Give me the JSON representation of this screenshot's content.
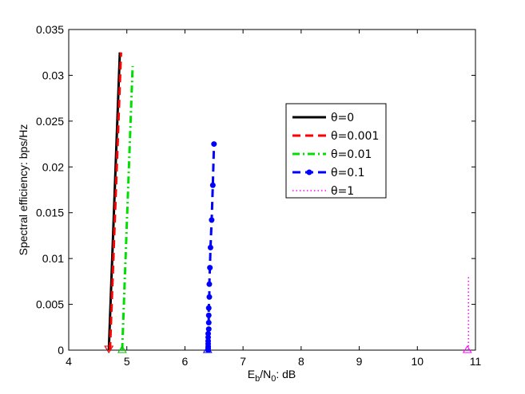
{
  "chart_data": {
    "type": "line",
    "title": "",
    "xlabel": {
      "main": "E",
      "sub1": "b",
      "mid": "/N",
      "sub2": "0",
      "tail": ": dB"
    },
    "ylabel": "Spectral efficiency: bps/Hz",
    "xlim": [
      4,
      11
    ],
    "ylim": [
      0,
      0.035
    ],
    "xticks": [
      "4",
      "5",
      "6",
      "7",
      "8",
      "9",
      "10",
      "11"
    ],
    "yticks": [
      "0",
      "0.005",
      "0.01",
      "0.015",
      "0.02",
      "0.025",
      "0.03",
      "0.035"
    ],
    "grid": false,
    "legend_position": "upper-right",
    "series": [
      {
        "name": "θ=0",
        "color": "#000000",
        "style": "solid",
        "marker": "none",
        "x": [
          4.69,
          4.88
        ],
        "y": [
          0.0,
          0.0325
        ],
        "end_marker": {
          "type": "triangle-down",
          "x": 4.69,
          "y": 0.0,
          "color": "#000000"
        }
      },
      {
        "name": "θ=0.001",
        "color": "#ff0000",
        "style": "dashed",
        "marker": "none",
        "x": [
          4.71,
          4.9
        ],
        "y": [
          0.0,
          0.0325
        ],
        "end_marker": {
          "type": "triangle-down",
          "x": 4.69,
          "y": 0.0,
          "color": "#ff0000"
        }
      },
      {
        "name": "θ=0.01",
        "color": "#00e000",
        "style": "dashdot",
        "marker": "none",
        "x": [
          4.92,
          5.1
        ],
        "y": [
          0.0,
          0.031
        ],
        "end_marker": {
          "type": "triangle-up",
          "x": 4.92,
          "y": 0.0,
          "color": "#00c000"
        }
      },
      {
        "name": "θ=0.1",
        "color": "#0000ff",
        "style": "dashed",
        "marker": "dot",
        "x": [
          6.4,
          6.4,
          6.4,
          6.4,
          6.4,
          6.4,
          6.4,
          6.41,
          6.41,
          6.41,
          6.41,
          6.42,
          6.42,
          6.43,
          6.44,
          6.46,
          6.48,
          6.5
        ],
        "y": [
          0.0,
          0.0002,
          0.0004,
          0.0007,
          0.001,
          0.0014,
          0.0018,
          0.0023,
          0.003,
          0.0038,
          0.0046,
          0.0058,
          0.0072,
          0.009,
          0.0112,
          0.0142,
          0.018,
          0.0225
        ],
        "end_marker": {
          "type": "triangle-up",
          "x": 6.39,
          "y": 0.0,
          "color": "#0000ff"
        }
      },
      {
        "name": "θ=1",
        "color": "#ff00ff",
        "style": "dotted",
        "marker": "none",
        "x": [
          10.88,
          10.88
        ],
        "y": [
          0.0,
          0.0082
        ],
        "end_marker": {
          "type": "triangle-up",
          "x": 10.86,
          "y": 0.0,
          "color": "#ff00ff"
        }
      }
    ]
  }
}
